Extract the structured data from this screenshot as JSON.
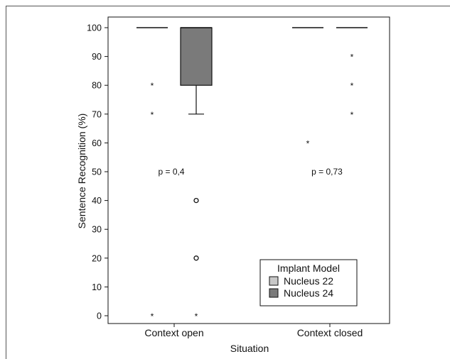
{
  "chart_data": {
    "type": "boxplot",
    "xlabel": "Situation",
    "ylabel": "Sentence Recognition (%)",
    "ylim": [
      0,
      100
    ],
    "yticks": [
      0,
      10,
      20,
      30,
      40,
      50,
      60,
      70,
      80,
      90,
      100
    ],
    "categories": [
      "Context open",
      "Context closed"
    ],
    "series": [
      {
        "name": "Nucleus 22",
        "color": "#c8c8c8",
        "boxes": [
          {
            "category": "Context open",
            "min": 100,
            "q1": 100,
            "median": 100,
            "q3": 100,
            "max": 100,
            "outliers": [],
            "extremes": [
              80,
              70,
              0
            ]
          },
          {
            "category": "Context closed",
            "min": 100,
            "q1": 100,
            "median": 100,
            "q3": 100,
            "max": 100,
            "outliers": [],
            "extremes": [
              60
            ]
          }
        ]
      },
      {
        "name": "Nucleus 24",
        "color": "#7a7a7a",
        "boxes": [
          {
            "category": "Context open",
            "min": 70,
            "q1": 80,
            "median": 100,
            "q3": 100,
            "max": 100,
            "outliers": [
              40,
              20
            ],
            "extremes": [
              0
            ]
          },
          {
            "category": "Context closed",
            "min": 100,
            "q1": 100,
            "median": 100,
            "q3": 100,
            "max": 100,
            "outliers": [],
            "extremes": [
              90,
              80,
              70
            ]
          }
        ]
      }
    ],
    "annotations": [
      {
        "category": "Context open",
        "text": "p = 0,4",
        "y": 50
      },
      {
        "category": "Context closed",
        "text": "p = 0,73",
        "y": 50
      }
    ],
    "legend": {
      "title": "Implant Model",
      "position": "bottom-right"
    }
  }
}
